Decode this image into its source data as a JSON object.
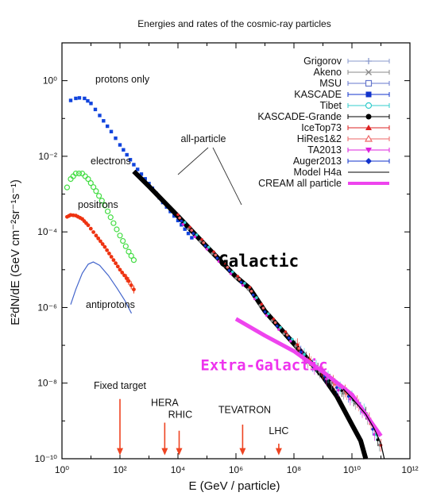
{
  "chart_data": {
    "type": "scatter",
    "title": "Energies and rates of the cosmic-ray particles",
    "xlabel": "E   (GeV / particle)",
    "ylabel": "E²dN/dE   (GeV cm⁻²sr⁻¹s⁻¹)",
    "xscale": "log",
    "yscale": "log",
    "xlim": [
      1,
      1000000000000.0
    ],
    "ylim": [
      1e-10,
      10
    ],
    "x_ticks": [
      {
        "value": 1,
        "label": "10⁰"
      },
      {
        "value": 100.0,
        "label": "10²"
      },
      {
        "value": 10000.0,
        "label": "10⁴"
      },
      {
        "value": 1000000.0,
        "label": "10⁶"
      },
      {
        "value": 100000000.0,
        "label": "10⁸"
      },
      {
        "value": 10000000000.0,
        "label": "10¹⁰"
      },
      {
        "value": 1000000000000.0,
        "label": "10¹²"
      }
    ],
    "y_ticks": [
      {
        "value": 1,
        "label": "10⁰"
      },
      {
        "value": 0.01,
        "label": "10⁻²"
      },
      {
        "value": 0.0001,
        "label": "10⁻⁴"
      },
      {
        "value": 1e-06,
        "label": "10⁻⁶"
      },
      {
        "value": 1e-08,
        "label": "10⁻⁸"
      },
      {
        "value": 1e-10,
        "label": "10⁻¹⁰"
      }
    ],
    "legend_position": "top-right",
    "legend": [
      {
        "name": "Grigorov",
        "color": "#8899cc",
        "marker": "plus"
      },
      {
        "name": "Akeno",
        "color": "#888888",
        "marker": "cross"
      },
      {
        "name": "MSU",
        "color": "#6677cc",
        "marker": "square-open"
      },
      {
        "name": "KASCADE",
        "color": "#1133cc",
        "marker": "square"
      },
      {
        "name": "Tibet",
        "color": "#33cccc",
        "marker": "circle-open"
      },
      {
        "name": "KASCADE-Grande",
        "color": "#000000",
        "marker": "circle"
      },
      {
        "name": "IceTop73",
        "color": "#dd2222",
        "marker": "triangle"
      },
      {
        "name": "HiRes1&2",
        "color": "#ee6666",
        "marker": "triangle-open"
      },
      {
        "name": "TA2013",
        "color": "#dd22dd",
        "marker": "triangle-down"
      },
      {
        "name": "Auger2013",
        "color": "#1133cc",
        "marker": "diamond"
      },
      {
        "name": "Model H4a",
        "color": "#000000",
        "marker": "line"
      },
      {
        "name": "CREAM all particle",
        "color": "#ee44ee",
        "marker": "thick-line"
      }
    ],
    "curves": [
      {
        "id": "protons",
        "label": "protons only",
        "color": "#1144dd",
        "style": "squares",
        "x": [
          2,
          3,
          4,
          6,
          10,
          20,
          50,
          100,
          300,
          1000,
          3000,
          10000.0,
          30000.0
        ],
        "y": [
          0.3,
          0.34,
          0.35,
          0.34,
          0.25,
          0.12,
          0.045,
          0.02,
          0.006,
          0.0019,
          0.0006,
          0.0002,
          7e-05
        ]
      },
      {
        "id": "electrons",
        "label": "electrons",
        "color": "#44dd44",
        "style": "open-circles",
        "x": [
          1.5,
          2,
          3,
          5,
          8,
          15,
          30,
          60,
          100,
          200,
          300
        ],
        "y": [
          0.0015,
          0.0025,
          0.0035,
          0.0035,
          0.0025,
          0.0012,
          0.0005,
          0.00017,
          8e-05,
          3e-05,
          1.8e-05
        ]
      },
      {
        "id": "positrons",
        "label": "positrons",
        "color": "#ee3311",
        "style": "filled-circles",
        "x": [
          1.5,
          2,
          3,
          5,
          8,
          15,
          30,
          60,
          100,
          200,
          300
        ],
        "y": [
          0.00025,
          0.00028,
          0.00027,
          0.00022,
          0.00015,
          8e-05,
          4e-05,
          1.8e-05,
          1e-05,
          5e-06,
          3e-06
        ],
        "error_bars_from_x": 150
      },
      {
        "id": "antiprotons",
        "label": "antiprotons",
        "color": "#4466cc",
        "style": "line",
        "x": [
          2,
          3,
          5,
          8,
          12,
          20,
          40,
          80,
          150,
          250
        ],
        "y": [
          1.2e-06,
          3e-06,
          8e-06,
          1.4e-05,
          1.6e-05,
          1.3e-05,
          7e-06,
          3.2e-06,
          1.5e-06,
          7e-07
        ]
      },
      {
        "id": "all_particle",
        "label": "all-particle",
        "color": "#000000",
        "style": "thick-line",
        "x": [
          300,
          1000.0,
          10000.0,
          100000.0,
          1000000.0,
          3000000.0,
          10000000.0,
          100000000.0,
          1000000000.0,
          3000000000.0,
          10000000000.0,
          20000000000.0,
          30000000000.0
        ],
        "y": [
          0.004,
          0.0016,
          0.00026,
          4e-05,
          6.5e-06,
          3.2e-06,
          8e-07,
          1.1e-07,
          1.5e-08,
          4.5e-09,
          8e-10,
          3e-10,
          1e-10
        ]
      },
      {
        "id": "data_points",
        "color": "#dd2222",
        "style": "colored-scatter",
        "x": [
          10000.0,
          100000.0,
          1000000.0,
          3000000.0,
          10000000.0,
          30000000.0,
          100000000.0,
          300000000.0,
          1000000000.0,
          3000000000.0,
          10000000000.0,
          30000000000.0,
          60000000000.0,
          100000000000.0
        ],
        "y": [
          0.00025,
          4e-05,
          6.5e-06,
          3e-06,
          8e-07,
          3e-07,
          1.2e-07,
          4e-08,
          1.8e-08,
          8e-09,
          4e-09,
          1.6e-09,
          5e-10,
          2e-10
        ]
      },
      {
        "id": "extra_galactic",
        "color": "#ee44ee",
        "style": "thick-line",
        "x": [
          1000000.0,
          10000000.0,
          100000000.0,
          1000000000.0,
          10000000000.0,
          30000000000.0,
          100000000000.0
        ],
        "y": [
          5e-07,
          1.8e-07,
          7e-08,
          2e-08,
          5e-09,
          1.5e-09,
          4e-10
        ]
      },
      {
        "id": "model_h4a",
        "color": "#000000",
        "style": "thin-line",
        "x": [
          5000000000.0,
          10000000000.0,
          30000000000.0,
          60000000000.0,
          100000000000.0,
          130000000000.0
        ],
        "y": [
          7e-09,
          4e-09,
          1.5e-09,
          6e-10,
          2.5e-10,
          1e-10
        ]
      }
    ],
    "region_labels": [
      {
        "text": "Galactic",
        "color": "#000000",
        "x": 250000.0,
        "y": 1.2e-05
      },
      {
        "text": "Extra-Galactic",
        "color": "#ee33ee",
        "x": 60000.0,
        "y": 2.2e-08
      }
    ],
    "annotations": [
      {
        "text": "Fixed target",
        "x": 100,
        "y": 7e-09,
        "arrow_to": [
          100,
          1.3e-10
        ]
      },
      {
        "text": "HERA",
        "x": 3500.0,
        "y": 2.5e-09
      },
      {
        "text": "RHIC",
        "x": 12000.0,
        "y": 1.2e-09
      },
      {
        "text": "TEVATRON",
        "x": 2000000.0,
        "y": 1.6e-09
      },
      {
        "text": "LHC",
        "x": 30000000.0,
        "y": 4.5e-10
      }
    ],
    "arrows": [
      {
        "from": [
          100,
          3.8e-09
        ],
        "to": [
          100,
          1.3e-10
        ],
        "color": "#ee4422"
      },
      {
        "from": [
          3500.0,
          9e-10
        ],
        "to": [
          3500.0,
          1.3e-10
        ],
        "color": "#ee4422"
      },
      {
        "from": [
          11000.0,
          5.5e-10
        ],
        "to": [
          11000.0,
          1.3e-10
        ],
        "color": "#ee4422"
      },
      {
        "from": [
          1700000.0,
          8e-10
        ],
        "to": [
          1700000.0,
          1.3e-10
        ],
        "color": "#ee4422"
      },
      {
        "from": [
          30000000.0,
          2.5e-10
        ],
        "to": [
          30000000.0,
          1.3e-10
        ],
        "color": "#ee4422"
      }
    ]
  }
}
